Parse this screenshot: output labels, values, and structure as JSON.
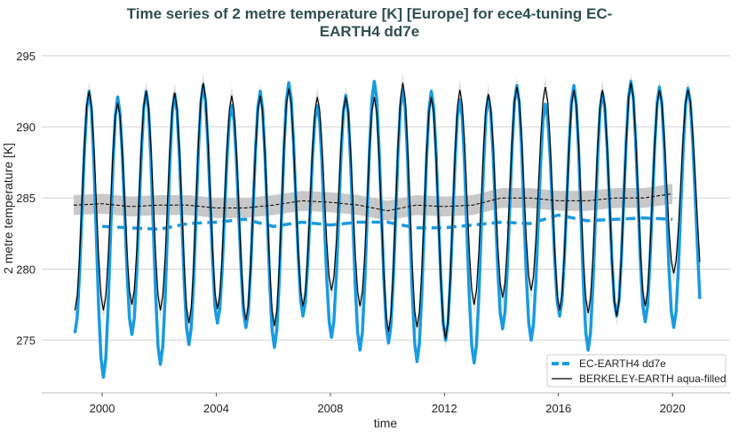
{
  "chart_data": {
    "type": "line",
    "title_line1": "Time series of 2 metre temperature [K] [Europe] for ece4-tuning EC-",
    "title_line2": "EARTH4 dd7e",
    "xlabel": "time",
    "ylabel": "2 metre temperature [K]",
    "xlim": [
      1997.88,
      2022.02
    ],
    "ylim": [
      271.3,
      295.8
    ],
    "xticks": [
      2000,
      2004,
      2008,
      2012,
      2016,
      2020
    ],
    "yticks": [
      275,
      280,
      285,
      290,
      295
    ],
    "grid": "horizontal",
    "legend_position": "lower-right",
    "years": [
      1999,
      2000,
      2001,
      2002,
      2003,
      2004,
      2005,
      2006,
      2007,
      2008,
      2009,
      2010,
      2011,
      2012,
      2013,
      2014,
      2015,
      2016,
      2017,
      2018,
      2019,
      2020
    ],
    "series": [
      {
        "name": "EC-EARTH4 dd7e",
        "color": "#1a9ae0",
        "style": "solid-thick",
        "annual_winter_min": [
          275.5,
          272.4,
          275.4,
          273.3,
          274.7,
          276.2,
          275.9,
          274.5,
          276.7,
          275.2,
          274.3,
          274.8,
          273.5,
          275.0,
          273.4,
          275.8,
          275.0,
          276.7,
          274.3,
          276.7,
          276.3,
          275.9
        ],
        "annual_summer_max": [
          292.5,
          292.1,
          292.5,
          292.3,
          292.9,
          291.5,
          292.5,
          293.1,
          291.5,
          292.2,
          293.2,
          292.6,
          292.5,
          291.9,
          292.1,
          292.9,
          291.6,
          292.9,
          292.4,
          293.2,
          292.8,
          292.7
        ],
        "last_value": 277.9,
        "running_mean": {
          "style": "dashed-thick",
          "x": [
            2000,
            2001,
            2002,
            2003,
            2004,
            2005,
            2006,
            2007,
            2008,
            2009,
            2010,
            2011,
            2012,
            2013,
            2014,
            2015,
            2016,
            2017,
            2018,
            2019,
            2020
          ],
          "y": [
            283.0,
            282.9,
            282.8,
            283.2,
            283.3,
            283.5,
            283.0,
            283.3,
            283.1,
            283.3,
            283.3,
            282.9,
            282.9,
            283.1,
            283.3,
            283.2,
            283.8,
            283.4,
            283.5,
            283.6,
            283.5
          ]
        }
      },
      {
        "name": "BERKELEY-EARTH aqua-filled",
        "color": "#000000",
        "style": "solid-thin",
        "uncertainty": 0.7,
        "annual_winter_min": [
          277.1,
          277.1,
          277.5,
          277.1,
          276.2,
          277.2,
          276.4,
          276.0,
          277.4,
          278.5,
          277.4,
          275.6,
          275.9,
          275.1,
          277.5,
          278.0,
          278.5,
          277.1,
          276.9,
          276.7,
          277.4,
          279.7
        ],
        "annual_summer_max": [
          292.5,
          291.7,
          292.5,
          292.4,
          293.1,
          292.2,
          292.2,
          292.7,
          292.1,
          292.1,
          292.1,
          293.1,
          292.1,
          292.6,
          292.3,
          292.8,
          292.8,
          292.6,
          292.6,
          293.1,
          292.6,
          292.6
        ],
        "last_value": 280.5,
        "running_mean": {
          "style": "dashed-thin",
          "band": 0.7,
          "x": [
            1999,
            2000,
            2001,
            2002,
            2003,
            2004,
            2005,
            2006,
            2007,
            2008,
            2009,
            2010,
            2011,
            2012,
            2013,
            2014,
            2015,
            2016,
            2017,
            2018,
            2019,
            2020
          ],
          "y": [
            284.5,
            284.6,
            284.4,
            284.5,
            284.5,
            284.3,
            284.3,
            284.5,
            284.8,
            284.7,
            284.5,
            284.1,
            284.5,
            284.4,
            284.5,
            285.0,
            285.0,
            284.8,
            284.8,
            285.0,
            285.0,
            285.3
          ]
        }
      }
    ]
  }
}
